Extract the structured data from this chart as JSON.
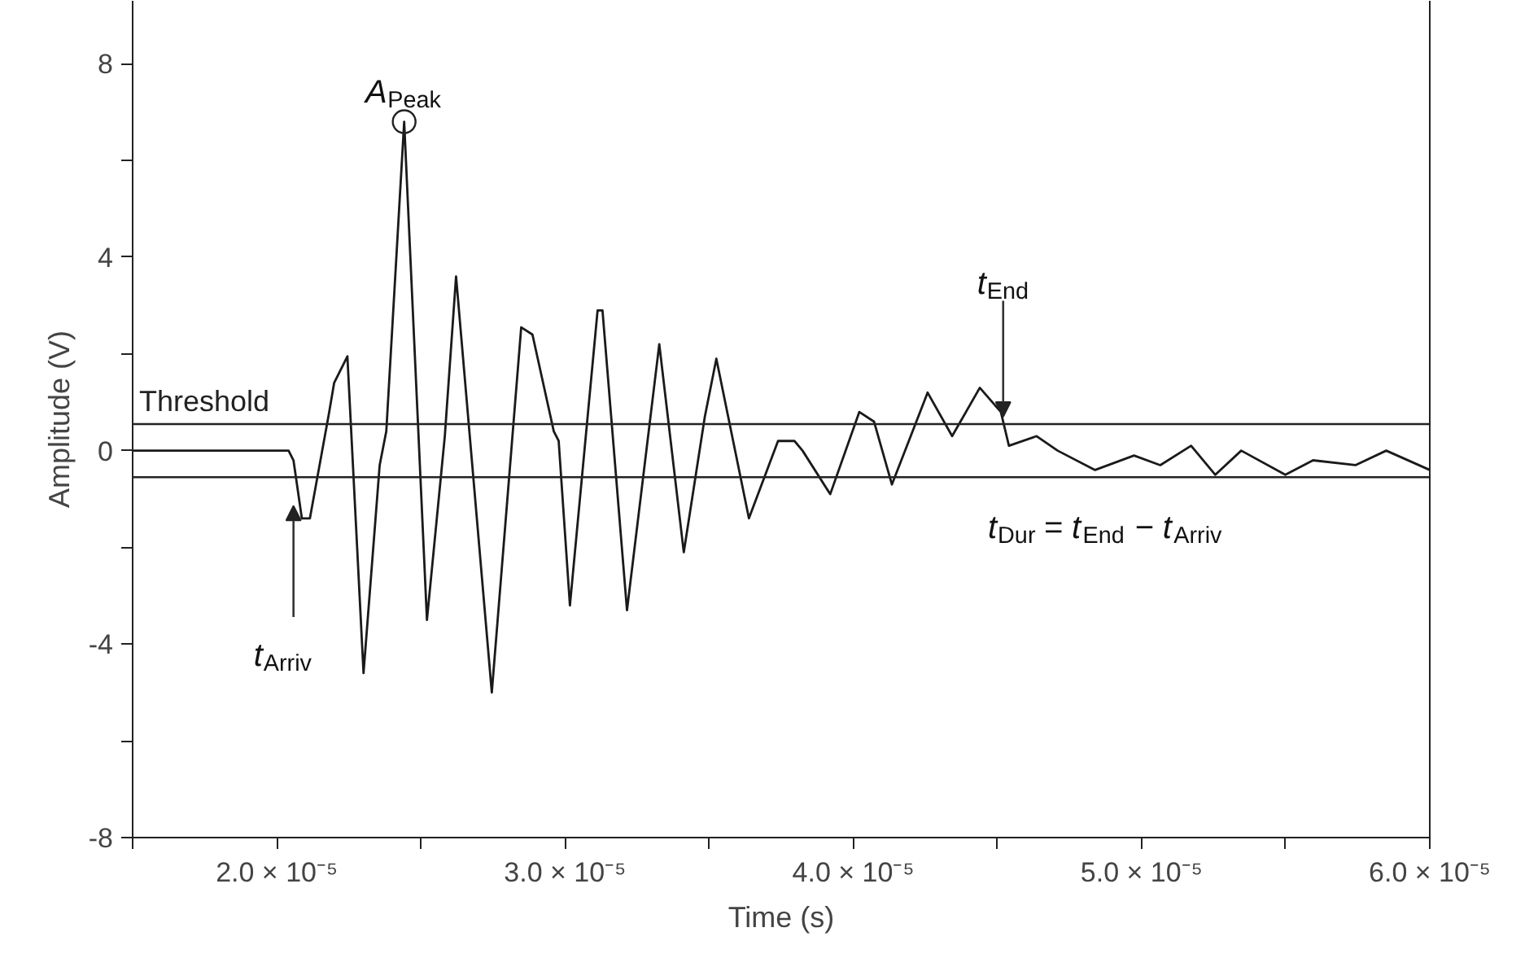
{
  "chart_data": {
    "type": "line",
    "xlabel": "Time (s)",
    "ylabel": "Amplitude (V)",
    "x": [
      1.5e-05,
      2.041e-05,
      2.058e-05,
      2.087e-05,
      2.115e-05,
      2.182e-05,
      2.199e-05,
      2.245e-05,
      2.301e-05,
      2.357e-05,
      2.38e-05,
      2.442e-05,
      2.521e-05,
      2.583e-05,
      2.622e-05,
      2.746e-05,
      2.848e-05,
      2.887e-05,
      2.961e-05,
      2.978e-05,
      3.017e-05,
      3.113e-05,
      3.13e-05,
      3.215e-05,
      3.327e-05,
      3.412e-05,
      3.485e-05,
      3.525e-05,
      3.638e-05,
      3.739e-05,
      3.796e-05,
      3.824e-05,
      3.92e-05,
      4.021e-05,
      4.072e-05,
      4.134e-05,
      4.258e-05,
      4.343e-05,
      4.439e-05,
      4.512e-05,
      4.54e-05,
      4.636e-05,
      4.709e-05,
      4.839e-05,
      4.974e-05,
      5.065e-05,
      5.172e-05,
      5.256e-05,
      5.346e-05,
      5.499e-05,
      5.595e-05,
      5.742e-05,
      5.849e-05,
      6e-05
    ],
    "series": [
      {
        "color": "#1a1a1a",
        "values": [
          0,
          0,
          -0.2,
          -1.4,
          -1.4,
          0.8,
          1.4,
          1.95,
          -4.6,
          -0.3,
          0.4,
          6.8,
          -3.5,
          0.3,
          3.6,
          -5.0,
          2.55,
          2.4,
          0.4,
          0.2,
          -3.2,
          2.9,
          2.9,
          -3.3,
          2.2,
          -2.1,
          0.7,
          1.9,
          -1.4,
          0.2,
          0.2,
          0.0,
          -0.9,
          0.8,
          0.6,
          -0.7,
          1.2,
          0.3,
          1.3,
          0.8,
          0.1,
          0.3,
          0.0,
          -0.4,
          -0.1,
          -0.3,
          0.1,
          -0.5,
          0.0,
          -0.5,
          -0.2,
          -0.3,
          0.0,
          -0.4
        ]
      }
    ],
    "xlim": [
      1.5e-05,
      6e-05
    ],
    "ylim": [
      -8,
      9.3
    ],
    "xticks": [
      {
        "value": 1.5e-05,
        "label": null
      },
      {
        "value": 2e-05,
        "label": "2.0 × 10⁻⁵"
      },
      {
        "value": 2.5e-05,
        "label": null
      },
      {
        "value": 3e-05,
        "label": "3.0 × 10⁻⁵"
      },
      {
        "value": 3.5e-05,
        "label": null
      },
      {
        "value": 4e-05,
        "label": "4.0 × 10⁻⁵"
      },
      {
        "value": 4.5e-05,
        "label": null
      },
      {
        "value": 5e-05,
        "label": "5.0 × 10⁻⁵"
      },
      {
        "value": 5.5e-05,
        "label": null
      },
      {
        "value": 6e-05,
        "label": "6.0 × 10⁻⁵"
      }
    ],
    "yticks": [
      -8,
      {
        "value": -6,
        "label": null
      },
      -4,
      {
        "value": -2,
        "label": null
      },
      0,
      {
        "value": 2,
        "label": null
      },
      4,
      {
        "value": 6,
        "label": null
      },
      8
    ],
    "ref_lines": [
      {
        "axis": "y",
        "value": 0.55,
        "label": "Threshold"
      },
      {
        "axis": "y",
        "value": -0.55,
        "label": null
      }
    ],
    "annotations": [
      {
        "text": "A$_{Peak}$",
        "x": 2.442e-05,
        "y": 6.8
      },
      {
        "text": "t$_{Arriv}$",
        "x": 2.058e-05,
        "y": -1.14
      },
      {
        "text": "t$_{End}$",
        "x": 4.52e-05,
        "y": 0.7
      },
      "t$_{Dur}$ = t$_{End}$ − t$_{Arriv}$"
    ],
    "marker": "none",
    "line_style": "solid"
  }
}
